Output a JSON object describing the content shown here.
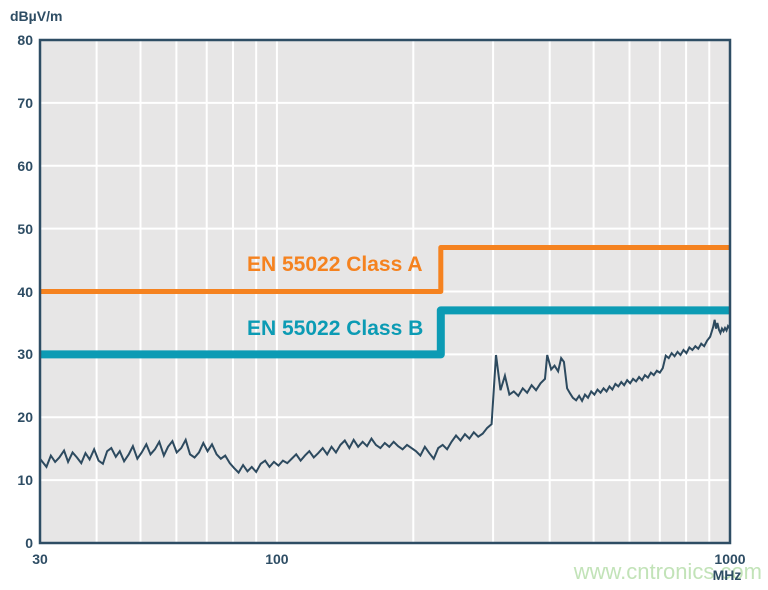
{
  "watermark_text": "www.cntronics.com",
  "colors": {
    "axis": "#2e4d64",
    "plot_background": "#e7e6e6",
    "gridline": "#ffffff",
    "trace": "#2d4a5f",
    "class_a": "#f5821f",
    "class_b": "#0c9bb4",
    "watermark": "#c2e3b8"
  },
  "chart_data": {
    "type": "line",
    "title": "",
    "x_axis": {
      "unit": "MHz",
      "scale": "log",
      "min": 30,
      "max": 1000,
      "tick_labels": [
        {
          "label": "30",
          "freq": 30
        },
        {
          "label": "100",
          "freq": 100
        },
        {
          "label": "1000",
          "freq": 1000
        }
      ],
      "gridlines": [
        40,
        50,
        60,
        70,
        80,
        90,
        100,
        200,
        300,
        400,
        500,
        600,
        700,
        800,
        900
      ]
    },
    "y_axis": {
      "unit": "dBµV/m",
      "min": 0,
      "max": 80,
      "ticks": [
        0,
        10,
        20,
        30,
        40,
        50,
        60,
        70,
        80
      ],
      "gridlines": [
        10,
        20,
        30,
        40,
        50,
        60,
        70
      ]
    },
    "limit_lines": [
      {
        "name": "EN 55022 Class A",
        "color": "#f5821f",
        "stroke_width": 5,
        "points": [
          [
            30,
            40
          ],
          [
            230,
            40
          ],
          [
            230,
            47
          ],
          [
            1000,
            47
          ]
        ]
      },
      {
        "name": "EN 55022 Class B",
        "color": "#0c9bb4",
        "stroke_width": 8,
        "points": [
          [
            30,
            30
          ],
          [
            230,
            30
          ],
          [
            230,
            37
          ],
          [
            1000,
            37
          ]
        ]
      }
    ],
    "series": [
      {
        "name": "measured-emissions",
        "color": "#2d4a5f",
        "stroke_width": 2,
        "points": [
          [
            30,
            13.4
          ],
          [
            31,
            12.1
          ],
          [
            31.7,
            13.9
          ],
          [
            32.4,
            12.9
          ],
          [
            33.1,
            13.6
          ],
          [
            33.9,
            14.7
          ],
          [
            34.6,
            12.9
          ],
          [
            35.4,
            14.4
          ],
          [
            36.2,
            13.6
          ],
          [
            37,
            12.7
          ],
          [
            37.8,
            14.3
          ],
          [
            38.6,
            13.3
          ],
          [
            39.5,
            14.9
          ],
          [
            40.4,
            13.1
          ],
          [
            41.3,
            12.6
          ],
          [
            42.2,
            14.6
          ],
          [
            43.1,
            15.1
          ],
          [
            44.1,
            13.7
          ],
          [
            45,
            14.6
          ],
          [
            46,
            13
          ],
          [
            47.1,
            14.1
          ],
          [
            48.1,
            15.4
          ],
          [
            49.2,
            13.4
          ],
          [
            50.3,
            14.4
          ],
          [
            51.5,
            15.7
          ],
          [
            52.6,
            14.1
          ],
          [
            53.8,
            14.9
          ],
          [
            55,
            16.1
          ],
          [
            56.3,
            13.9
          ],
          [
            57.5,
            15.3
          ],
          [
            58.8,
            16.2
          ],
          [
            60.1,
            14.4
          ],
          [
            61.5,
            15.1
          ],
          [
            62.9,
            16.4
          ],
          [
            64.3,
            14.1
          ],
          [
            65.8,
            13.6
          ],
          [
            67.3,
            14.4
          ],
          [
            68.8,
            15.9
          ],
          [
            70.3,
            14.6
          ],
          [
            71.9,
            15.7
          ],
          [
            73.6,
            14.1
          ],
          [
            75.2,
            13.4
          ],
          [
            76.9,
            13.9
          ],
          [
            78.7,
            12.7
          ],
          [
            80.5,
            11.9
          ],
          [
            82.3,
            11.2
          ],
          [
            84.2,
            12.4
          ],
          [
            86.1,
            11.4
          ],
          [
            88,
            12.1
          ],
          [
            90,
            11.3
          ],
          [
            92.1,
            12.6
          ],
          [
            94.2,
            13.1
          ],
          [
            96.3,
            12.1
          ],
          [
            98.5,
            12.9
          ],
          [
            100.8,
            12.3
          ],
          [
            103.1,
            13.1
          ],
          [
            105.4,
            12.7
          ],
          [
            107.8,
            13.4
          ],
          [
            110.3,
            14.1
          ],
          [
            112.8,
            13.1
          ],
          [
            115.3,
            13.9
          ],
          [
            117.9,
            14.6
          ],
          [
            120.6,
            13.6
          ],
          [
            123.4,
            14.3
          ],
          [
            126.2,
            15.1
          ],
          [
            129.1,
            14.1
          ],
          [
            132,
            15.3
          ],
          [
            135,
            14.4
          ],
          [
            138.1,
            15.6
          ],
          [
            141.2,
            16.3
          ],
          [
            144.5,
            15.1
          ],
          [
            147.7,
            16.4
          ],
          [
            151.1,
            15.3
          ],
          [
            154.6,
            16.1
          ],
          [
            158.1,
            15.4
          ],
          [
            161.7,
            16.6
          ],
          [
            165.4,
            15.6
          ],
          [
            169.2,
            15.1
          ],
          [
            173,
            15.9
          ],
          [
            177,
            15.3
          ],
          [
            181,
            16.1
          ],
          [
            185.2,
            15.4
          ],
          [
            189.4,
            14.9
          ],
          [
            193.7,
            15.6
          ],
          [
            198.2,
            15.1
          ],
          [
            202.7,
            14.6
          ],
          [
            207.3,
            13.9
          ],
          [
            212.1,
            15.3
          ],
          [
            216.9,
            14.3
          ],
          [
            221.9,
            13.4
          ],
          [
            227,
            15.1
          ],
          [
            232.2,
            15.6
          ],
          [
            237.5,
            14.9
          ],
          [
            242.9,
            16.1
          ],
          [
            248.5,
            17.1
          ],
          [
            254.2,
            16.3
          ],
          [
            260,
            17.3
          ],
          [
            265.9,
            16.6
          ],
          [
            272,
            17.6
          ],
          [
            278.2,
            16.9
          ],
          [
            284.6,
            17.4
          ],
          [
            291.1,
            18.3
          ],
          [
            297.7,
            18.9
          ],
          [
            304.5,
            29.9
          ],
          [
            311.5,
            24.3
          ],
          [
            318.6,
            26.6
          ],
          [
            325.9,
            23.6
          ],
          [
            333.3,
            24.1
          ],
          [
            341,
            23.4
          ],
          [
            348.8,
            24.6
          ],
          [
            356.7,
            23.9
          ],
          [
            364.9,
            25.1
          ],
          [
            373.2,
            24.3
          ],
          [
            381.8,
            25.4
          ],
          [
            390.5,
            26.1
          ],
          [
            395,
            29.9
          ],
          [
            403,
            27.6
          ],
          [
            410,
            28.2
          ],
          [
            417.5,
            27.3
          ],
          [
            424,
            29.4
          ],
          [
            430,
            28.8
          ],
          [
            437,
            24.6
          ],
          [
            443.5,
            23.8
          ],
          [
            450,
            23.1
          ],
          [
            457.5,
            22.7
          ],
          [
            464.5,
            23.4
          ],
          [
            471.5,
            22.6
          ],
          [
            478.5,
            23.6
          ],
          [
            486,
            23.1
          ],
          [
            494,
            24.1
          ],
          [
            502,
            23.6
          ],
          [
            510,
            24.4
          ],
          [
            518,
            23.9
          ],
          [
            526,
            24.6
          ],
          [
            534,
            24.1
          ],
          [
            542,
            24.9
          ],
          [
            550,
            24.4
          ],
          [
            558.5,
            25.3
          ],
          [
            567,
            24.9
          ],
          [
            575.5,
            25.6
          ],
          [
            584,
            25.1
          ],
          [
            593,
            25.9
          ],
          [
            602,
            25.4
          ],
          [
            611,
            26.1
          ],
          [
            620.5,
            25.7
          ],
          [
            630,
            26.4
          ],
          [
            639.5,
            25.9
          ],
          [
            649,
            26.7
          ],
          [
            659,
            26.3
          ],
          [
            669,
            27.1
          ],
          [
            679,
            26.7
          ],
          [
            689.5,
            27.4
          ],
          [
            700,
            27.1
          ],
          [
            710.5,
            27.8
          ],
          [
            721.5,
            29.8
          ],
          [
            732.5,
            29.4
          ],
          [
            743.5,
            30.2
          ],
          [
            754.5,
            29.7
          ],
          [
            766,
            30.4
          ],
          [
            777.5,
            29.9
          ],
          [
            789.5,
            30.7
          ],
          [
            801.5,
            30.2
          ],
          [
            813.5,
            31.1
          ],
          [
            826,
            30.7
          ],
          [
            838.5,
            31.3
          ],
          [
            851,
            30.9
          ],
          [
            864,
            31.7
          ],
          [
            877,
            31.3
          ],
          [
            890.5,
            32.2
          ],
          [
            904,
            32.8
          ],
          [
            917.5,
            34.3
          ],
          [
            925,
            35.5
          ],
          [
            931.5,
            34.1
          ],
          [
            938,
            35
          ],
          [
            945.5,
            33.9
          ],
          [
            952.5,
            33.4
          ],
          [
            960,
            34.1
          ],
          [
            967.5,
            33.7
          ],
          [
            975,
            34.2
          ],
          [
            982.5,
            33.8
          ],
          [
            990,
            34.5
          ],
          [
            1000,
            34.1
          ]
        ]
      }
    ]
  }
}
